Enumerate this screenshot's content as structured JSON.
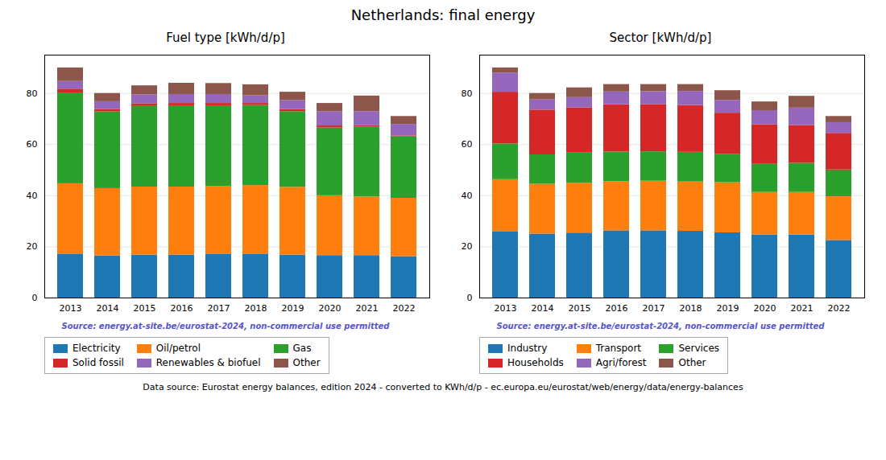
{
  "title": "Netherlands: final energy",
  "annotations": [
    "Data source: Eurostat energy balances, edition 2024 - converted to KWh/d/p - ec.europa.eu/eurostat/web/energy/data/energy-balances"
  ],
  "chart_data": [
    {
      "type": "bar",
      "stacked": true,
      "title": "Fuel type [kWh/d/p]",
      "categories": [
        "2013",
        "2014",
        "2015",
        "2016",
        "2017",
        "2018",
        "2019",
        "2020",
        "2021",
        "2022"
      ],
      "series": [
        {
          "name": "Electricity",
          "color": "#1f77b4",
          "values": [
            17.2,
            16.5,
            16.8,
            16.8,
            17.0,
            17.0,
            16.8,
            16.6,
            16.6,
            16.2
          ]
        },
        {
          "name": "Oil/petrol",
          "color": "#ff7f0e",
          "values": [
            27.5,
            26.3,
            26.6,
            26.6,
            26.7,
            27.0,
            26.5,
            23.4,
            22.9,
            22.8
          ]
        },
        {
          "name": "Gas",
          "color": "#2ca02c",
          "values": [
            35.5,
            30.0,
            31.8,
            31.8,
            31.5,
            31.3,
            29.6,
            26.5,
            27.3,
            24.0
          ]
        },
        {
          "name": "Solid fossil",
          "color": "#d62728",
          "values": [
            1.5,
            1.0,
            0.8,
            0.9,
            0.9,
            0.8,
            0.8,
            0.8,
            0.6,
            0.4
          ]
        },
        {
          "name": "Renewables & biofuel",
          "color": "#9467bd",
          "values": [
            3.0,
            3.0,
            3.5,
            3.5,
            3.5,
            3.0,
            3.5,
            5.5,
            5.5,
            4.5
          ]
        },
        {
          "name": "Other",
          "color": "#8c564b",
          "values": [
            5.3,
            3.2,
            3.5,
            4.4,
            4.3,
            4.3,
            3.3,
            3.3,
            6.1,
            3.1
          ]
        }
      ],
      "ylim": [
        0,
        95
      ],
      "yticks": [
        0,
        20,
        40,
        60,
        80
      ],
      "grid": true,
      "legend": "bottom",
      "annotations": [
        "Source: energy.at-site.be/eurostat-2024, non-commercial use permitted"
      ]
    },
    {
      "type": "bar",
      "stacked": true,
      "title": "Sector [kWh/d/p]",
      "categories": [
        "2013",
        "2014",
        "2015",
        "2016",
        "2017",
        "2018",
        "2019",
        "2020",
        "2021",
        "2022"
      ],
      "series": [
        {
          "name": "Industry",
          "color": "#1f77b4",
          "values": [
            26.0,
            25.0,
            25.4,
            26.3,
            26.3,
            26.1,
            25.5,
            24.7,
            24.6,
            22.5
          ]
        },
        {
          "name": "Transport",
          "color": "#ff7f0e",
          "values": [
            20.3,
            19.5,
            19.5,
            19.2,
            19.4,
            19.3,
            19.6,
            16.6,
            16.7,
            17.1
          ]
        },
        {
          "name": "Services",
          "color": "#2ca02c",
          "values": [
            14.0,
            11.5,
            12.0,
            11.6,
            11.5,
            11.6,
            11.0,
            11.0,
            11.4,
            10.5
          ]
        },
        {
          "name": "Households",
          "color": "#d62728",
          "values": [
            20.2,
            17.5,
            17.5,
            18.5,
            18.5,
            18.3,
            16.2,
            15.5,
            14.8,
            14.3
          ]
        },
        {
          "name": "Agri/forest",
          "color": "#9467bd",
          "values": [
            7.5,
            4.0,
            4.0,
            5.0,
            5.0,
            5.5,
            5.0,
            5.5,
            6.8,
            4.2
          ]
        },
        {
          "name": "Other",
          "color": "#8c564b",
          "values": [
            2.0,
            2.5,
            3.8,
            2.9,
            2.8,
            2.7,
            3.8,
            3.4,
            4.6,
            2.4
          ]
        }
      ],
      "ylim": [
        0,
        95
      ],
      "yticks": [
        0,
        20,
        40,
        60,
        80
      ],
      "grid": true,
      "legend": "bottom",
      "annotations": [
        "Source: energy.at-site.be/eurostat-2024, non-commercial use permitted"
      ]
    }
  ]
}
